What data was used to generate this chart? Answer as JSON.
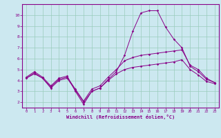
{
  "xlabel": "Windchill (Refroidissement éolien,°C)",
  "background_color": "#cce8f0",
  "line_color": "#880088",
  "grid_color": "#99ccbb",
  "x_values": [
    0,
    1,
    2,
    3,
    4,
    5,
    6,
    7,
    8,
    9,
    10,
    11,
    12,
    13,
    14,
    15,
    16,
    17,
    18,
    19,
    20,
    21,
    22,
    23
  ],
  "line1": [
    4.3,
    4.8,
    4.3,
    3.5,
    4.2,
    4.4,
    3.0,
    1.8,
    3.0,
    3.3,
    4.1,
    4.8,
    6.3,
    8.5,
    10.2,
    10.4,
    10.4,
    8.9,
    7.8,
    7.0,
    5.3,
    4.8,
    4.1,
    3.8
  ],
  "line2": [
    4.2,
    4.7,
    4.2,
    3.4,
    4.1,
    4.3,
    3.2,
    2.1,
    3.2,
    3.5,
    4.3,
    5.0,
    5.8,
    6.1,
    6.3,
    6.4,
    6.5,
    6.6,
    6.7,
    6.8,
    5.4,
    5.0,
    4.2,
    3.8
  ],
  "line3": [
    4.2,
    4.6,
    4.2,
    3.3,
    4.0,
    4.2,
    3.1,
    2.0,
    3.0,
    3.3,
    4.0,
    4.6,
    5.0,
    5.2,
    5.3,
    5.4,
    5.5,
    5.6,
    5.7,
    5.9,
    5.0,
    4.5,
    3.9,
    3.7
  ],
  "ylim": [
    1.5,
    11.0
  ],
  "yticks": [
    2,
    3,
    4,
    5,
    6,
    7,
    8,
    9,
    10
  ],
  "xlim": [
    -0.5,
    23.5
  ],
  "xticks": [
    0,
    1,
    2,
    3,
    4,
    5,
    6,
    7,
    8,
    9,
    10,
    11,
    12,
    13,
    14,
    15,
    16,
    17,
    18,
    19,
    20,
    21,
    22,
    23
  ]
}
